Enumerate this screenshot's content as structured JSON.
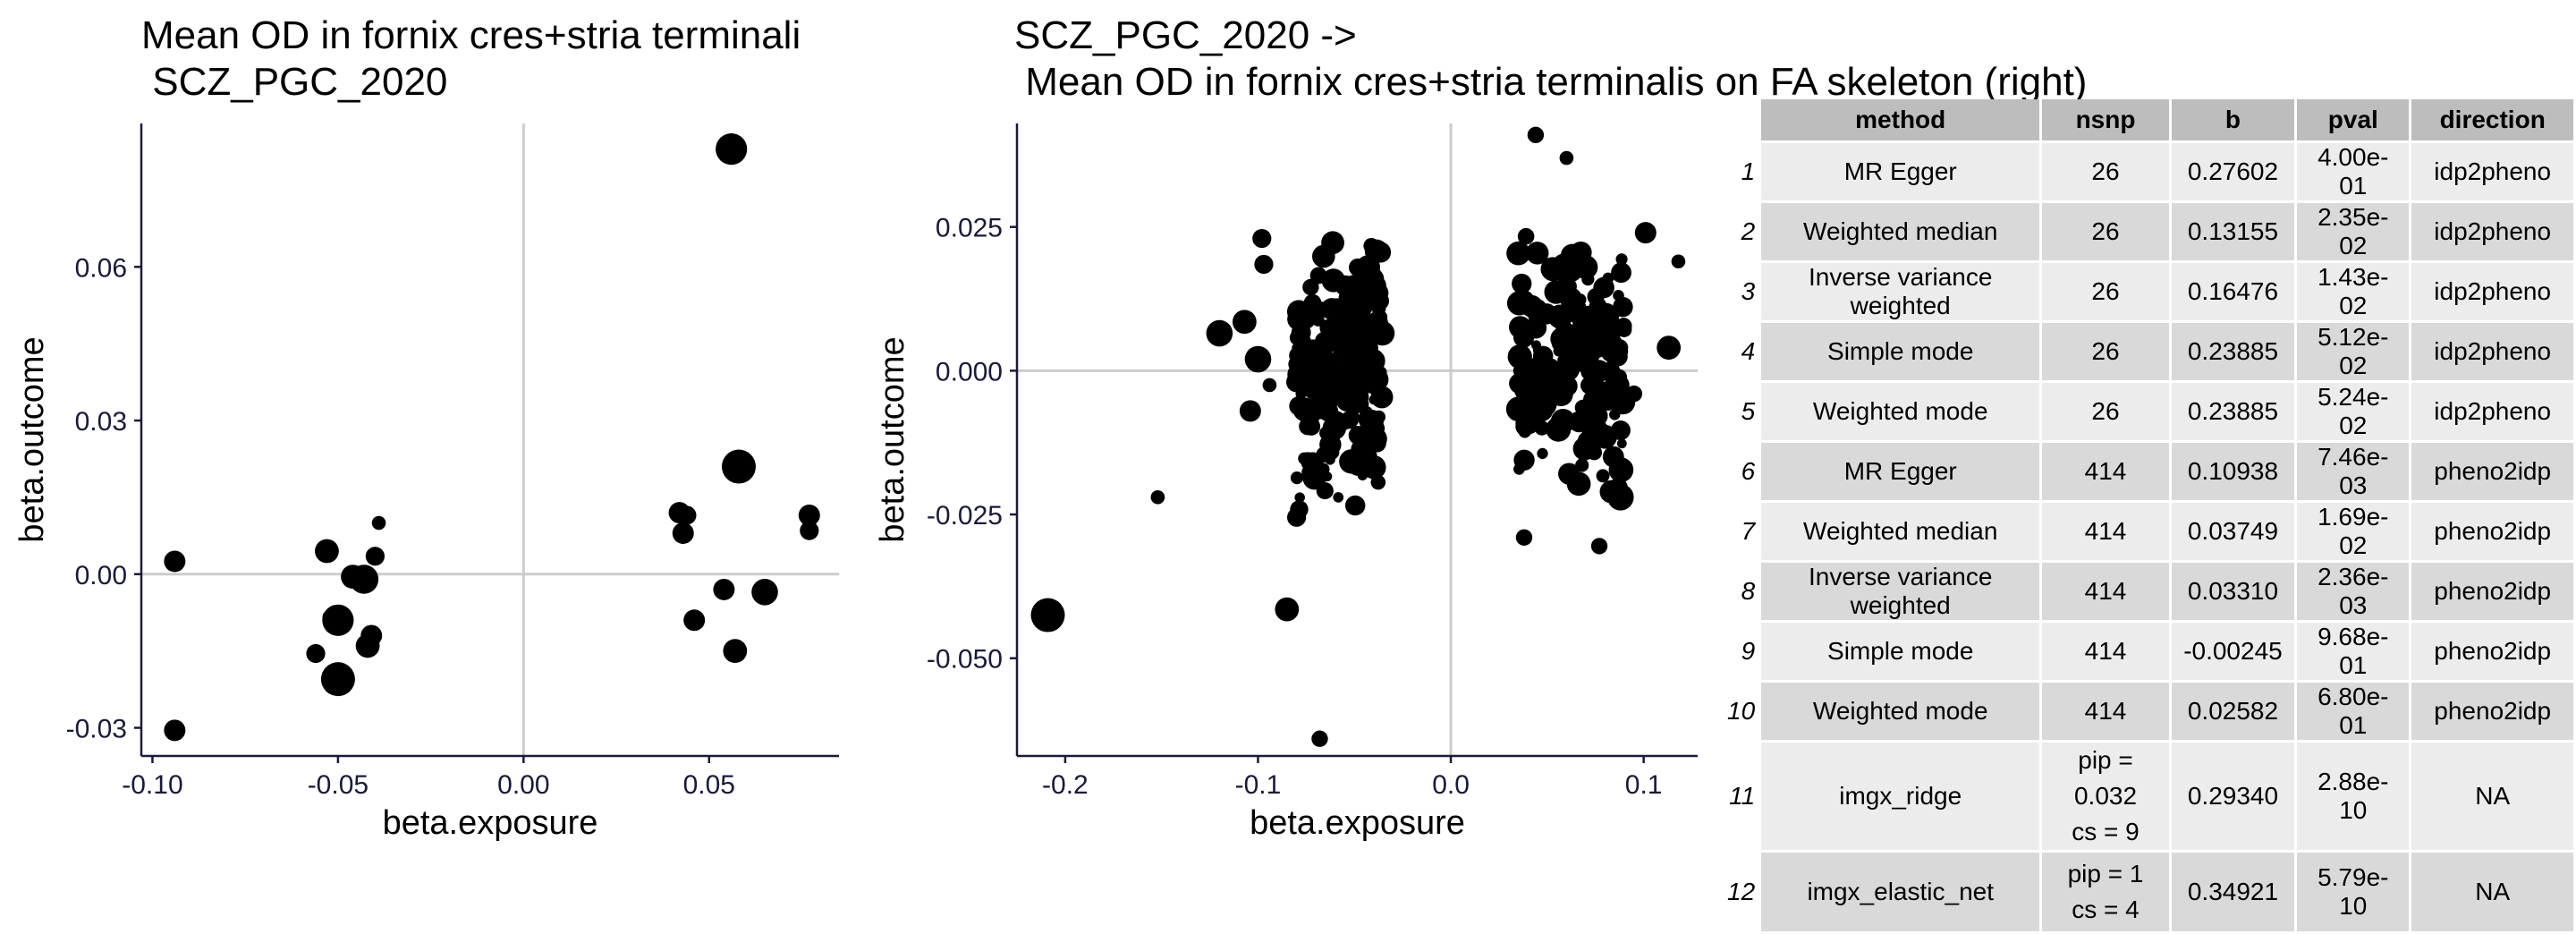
{
  "colors": {
    "background": "#ffffff",
    "point": "#000000",
    "refline": "#cccccc",
    "axis": "#1a1a3a",
    "header_bg": "#bdbdbd",
    "row_odd": "#ececec",
    "row_even": "#d9d9d9"
  },
  "left_title": "Mean OD in fornix cres+stria terminali\n SCZ_PGC_2020",
  "right_title": "SCZ_PGC_2020 ->\n Mean OD in fornix cres+stria terminalis on FA skeleton (right)",
  "chart_data": [
    {
      "type": "scatter",
      "title": "Mean OD in fornix cres+stria terminali\n SCZ_PGC_2020",
      "xlabel": "beta.exposure",
      "ylabel": "beta.outcome",
      "xlim": [
        -0.103,
        0.085
      ],
      "ylim": [
        -0.0355,
        0.088
      ],
      "xticks": [
        -0.1,
        -0.05,
        0.0,
        0.05
      ],
      "xtick_labels": [
        "-0.10",
        "-0.05",
        "0.00",
        "0.05"
      ],
      "yticks": [
        -0.03,
        0.0,
        0.03,
        0.06
      ],
      "ytick_labels": [
        "-0.03",
        "0.00",
        "0.03",
        "0.06"
      ],
      "reflines": {
        "x": 0,
        "y": 0
      },
      "point_size_scale": "relative size",
      "points": [
        {
          "x": -0.094,
          "y": 0.0025,
          "s": 0.5
        },
        {
          "x": -0.094,
          "y": -0.0305,
          "s": 0.5
        },
        {
          "x": -0.056,
          "y": -0.0155,
          "s": 0.4
        },
        {
          "x": -0.053,
          "y": 0.0045,
          "s": 0.6
        },
        {
          "x": -0.052,
          "y": -0.0085,
          "s": 0.3
        },
        {
          "x": -0.05,
          "y": -0.009,
          "s": 0.9
        },
        {
          "x": -0.05,
          "y": -0.0205,
          "s": 1.0
        },
        {
          "x": -0.046,
          "y": -0.0005,
          "s": 0.6
        },
        {
          "x": -0.043,
          "y": -0.001,
          "s": 0.8
        },
        {
          "x": -0.042,
          "y": -0.014,
          "s": 0.6
        },
        {
          "x": -0.041,
          "y": -0.012,
          "s": 0.5
        },
        {
          "x": -0.04,
          "y": 0.0035,
          "s": 0.4
        },
        {
          "x": -0.039,
          "y": 0.01,
          "s": 0.2
        },
        {
          "x": 0.042,
          "y": 0.012,
          "s": 0.5
        },
        {
          "x": 0.043,
          "y": 0.008,
          "s": 0.5
        },
        {
          "x": 0.044,
          "y": 0.0115,
          "s": 0.4
        },
        {
          "x": 0.046,
          "y": -0.009,
          "s": 0.5
        },
        {
          "x": 0.054,
          "y": -0.003,
          "s": 0.5
        },
        {
          "x": 0.056,
          "y": 0.083,
          "s": 0.9
        },
        {
          "x": 0.057,
          "y": -0.015,
          "s": 0.6
        },
        {
          "x": 0.058,
          "y": 0.021,
          "s": 1.0
        },
        {
          "x": 0.065,
          "y": -0.0035,
          "s": 0.7
        },
        {
          "x": 0.077,
          "y": 0.0115,
          "s": 0.5
        },
        {
          "x": 0.077,
          "y": 0.0085,
          "s": 0.4
        }
      ]
    },
    {
      "type": "scatter",
      "title": "SCZ_PGC_2020 ->\n Mean OD in fornix cres+stria terminalis on FA skeleton (right)",
      "xlabel": "beta.exposure",
      "ylabel": "beta.outcome",
      "xlim": [
        -0.225,
        0.128
      ],
      "ylim": [
        -0.067,
        0.043
      ],
      "xticks": [
        -0.2,
        -0.1,
        0.0,
        0.1
      ],
      "xtick_labels": [
        "-0.2",
        "-0.1",
        "0.0",
        "0.1"
      ],
      "yticks": [
        -0.05,
        -0.025,
        0.0,
        0.025
      ],
      "ytick_labels": [
        "-0.050",
        "-0.025",
        "0.000",
        "0.025"
      ],
      "reflines": {
        "x": 0,
        "y": 0
      },
      "point_size_scale": "relative size",
      "points": [
        {
          "x": -0.209,
          "y": -0.0425,
          "s": 1.0
        },
        {
          "x": -0.152,
          "y": -0.022,
          "s": 0.2
        },
        {
          "x": -0.12,
          "y": 0.0065,
          "s": 0.7
        },
        {
          "x": -0.107,
          "y": 0.0085,
          "s": 0.6
        },
        {
          "x": -0.104,
          "y": -0.007,
          "s": 0.5
        },
        {
          "x": -0.1,
          "y": 0.002,
          "s": 0.7
        },
        {
          "x": -0.098,
          "y": 0.023,
          "s": 0.4
        },
        {
          "x": -0.097,
          "y": 0.0185,
          "s": 0.4
        },
        {
          "x": -0.094,
          "y": -0.0025,
          "s": 0.2
        },
        {
          "x": -0.085,
          "y": -0.0415,
          "s": 0.6
        },
        {
          "x": -0.08,
          "y": -0.0255,
          "s": 0.4
        },
        {
          "x": -0.068,
          "y": -0.064,
          "s": 0.3
        },
        {
          "x": 0.044,
          "y": 0.041,
          "s": 0.3
        },
        {
          "x": 0.06,
          "y": 0.037,
          "s": 0.2
        },
        {
          "x": 0.07,
          "y": 0.018,
          "s": 0.6
        },
        {
          "x": 0.08,
          "y": -0.0115,
          "s": 0.6
        },
        {
          "x": 0.088,
          "y": -0.022,
          "s": 0.7
        },
        {
          "x": 0.095,
          "y": -0.004,
          "s": 0.3
        },
        {
          "x": 0.101,
          "y": 0.024,
          "s": 0.5
        },
        {
          "x": 0.113,
          "y": 0.004,
          "s": 0.6
        },
        {
          "x": 0.118,
          "y": 0.019,
          "s": 0.2
        },
        {
          "x": 0.077,
          "y": -0.0305,
          "s": 0.3
        },
        {
          "x": 0.038,
          "y": -0.029,
          "s": 0.3
        }
      ],
      "clusters": [
        {
          "x_range": [
            -0.08,
            -0.035
          ],
          "y_range": [
            -0.028,
            0.027
          ],
          "count": 220,
          "seed": 7
        },
        {
          "x_range": [
            0.035,
            0.09
          ],
          "y_range": [
            -0.027,
            0.03
          ],
          "count": 200,
          "seed": 13
        }
      ]
    }
  ],
  "table": {
    "headers": [
      "method",
      "nsnp",
      "b",
      "pval",
      "direction"
    ],
    "rows": [
      {
        "n": "1",
        "method": "MR Egger",
        "nsnp": [
          "26"
        ],
        "b": "0.27602",
        "pval": "4.00e-01",
        "direction": "idp2pheno"
      },
      {
        "n": "2",
        "method": "Weighted median",
        "nsnp": [
          "26"
        ],
        "b": "0.13155",
        "pval": "2.35e-02",
        "direction": "idp2pheno"
      },
      {
        "n": "3",
        "method": "Inverse variance weighted",
        "nsnp": [
          "26"
        ],
        "b": "0.16476",
        "pval": "1.43e-02",
        "direction": "idp2pheno"
      },
      {
        "n": "4",
        "method": "Simple mode",
        "nsnp": [
          "26"
        ],
        "b": "0.23885",
        "pval": "5.12e-02",
        "direction": "idp2pheno"
      },
      {
        "n": "5",
        "method": "Weighted mode",
        "nsnp": [
          "26"
        ],
        "b": "0.23885",
        "pval": "5.24e-02",
        "direction": "idp2pheno"
      },
      {
        "n": "6",
        "method": "MR Egger",
        "nsnp": [
          "414"
        ],
        "b": "0.10938",
        "pval": "7.46e-03",
        "direction": "pheno2idp"
      },
      {
        "n": "7",
        "method": "Weighted median",
        "nsnp": [
          "414"
        ],
        "b": "0.03749",
        "pval": "1.69e-02",
        "direction": "pheno2idp"
      },
      {
        "n": "8",
        "method": "Inverse variance weighted",
        "nsnp": [
          "414"
        ],
        "b": "0.03310",
        "pval": "2.36e-03",
        "direction": "pheno2idp"
      },
      {
        "n": "9",
        "method": "Simple mode",
        "nsnp": [
          "414"
        ],
        "b": "-0.00245",
        "pval": "9.68e-01",
        "direction": "pheno2idp"
      },
      {
        "n": "10",
        "method": "Weighted mode",
        "nsnp": [
          "414"
        ],
        "b": "0.02582",
        "pval": "6.80e-01",
        "direction": "pheno2idp"
      },
      {
        "n": "11",
        "method": "imgx_ridge",
        "nsnp": [
          "pip = 0.032",
          "cs = 9"
        ],
        "b": "0.29340",
        "pval": "2.88e-10",
        "direction": "NA"
      },
      {
        "n": "12",
        "method": "imgx_elastic_net",
        "nsnp": [
          "pip = 1",
          "cs = 4"
        ],
        "b": "0.34921",
        "pval": "5.79e-10",
        "direction": "NA"
      }
    ]
  }
}
